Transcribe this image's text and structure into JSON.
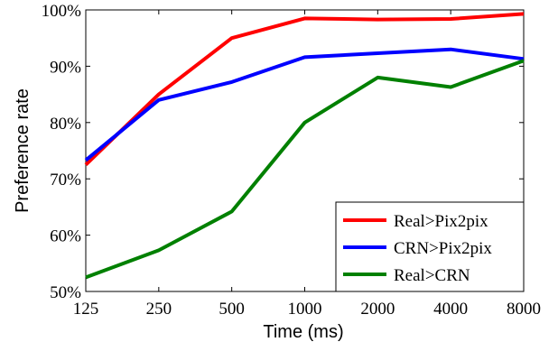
{
  "chart_data": {
    "type": "line",
    "title": "",
    "xlabel": "Time (ms)",
    "ylabel": "Preference rate",
    "x": [
      "125",
      "250",
      "500",
      "1000",
      "2000",
      "4000",
      "8000"
    ],
    "x_scale": "log2",
    "ylim": [
      50,
      100
    ],
    "yticks": [
      50,
      60,
      70,
      80,
      90,
      100
    ],
    "ytick_labels": [
      "50%",
      "60%",
      "70%",
      "80%",
      "90%",
      "100%"
    ],
    "grid": false,
    "legend_position": "bottom-right",
    "series": [
      {
        "name": "Real>Pix2pix",
        "color": "#ff0000",
        "values": [
          72.5,
          85.0,
          95.0,
          98.5,
          98.3,
          98.4,
          99.3
        ]
      },
      {
        "name": "CRN>Pix2pix",
        "color": "#0000ff",
        "values": [
          73.3,
          84.0,
          87.2,
          91.6,
          92.3,
          93.0,
          91.3
        ]
      },
      {
        "name": "Real>CRN",
        "color": "#008000",
        "values": [
          52.5,
          57.3,
          64.2,
          80.0,
          88.0,
          86.3,
          91.0
        ]
      }
    ]
  }
}
